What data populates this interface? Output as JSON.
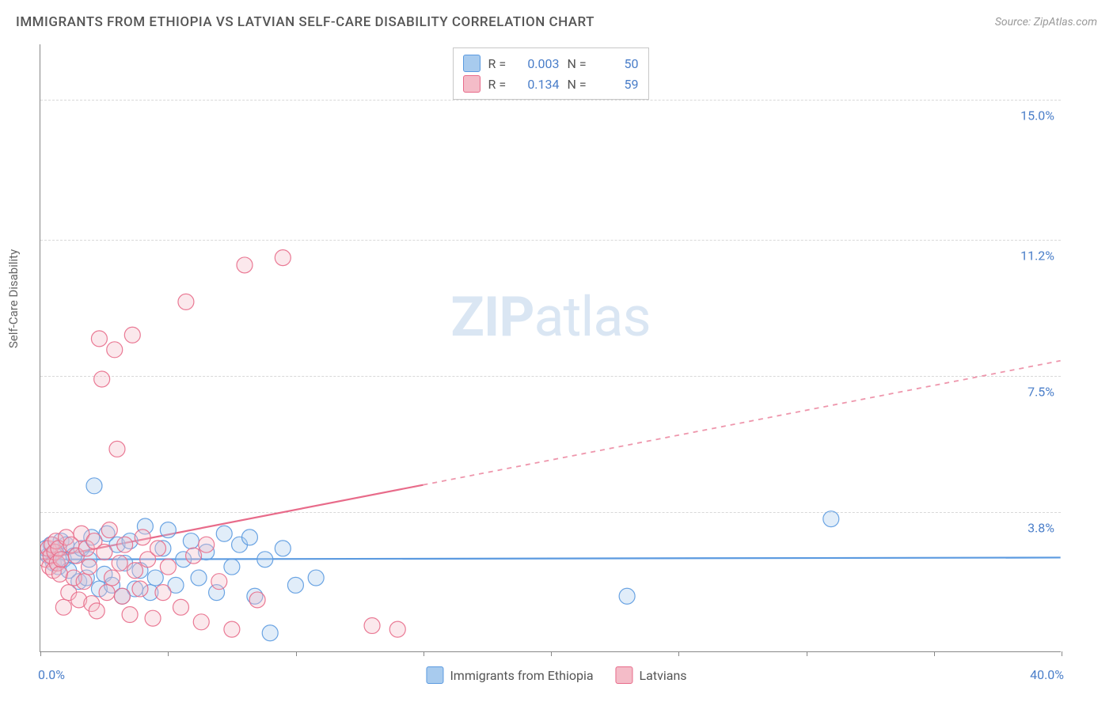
{
  "title": "IMMIGRANTS FROM ETHIOPIA VS LATVIAN SELF-CARE DISABILITY CORRELATION CHART",
  "source_label": "Source: ZipAtlas.com",
  "ylabel": "Self-Care Disability",
  "watermark_bold": "ZIP",
  "watermark_rest": "atlas",
  "chart": {
    "type": "scatter",
    "xlim": [
      0,
      40
    ],
    "ylim": [
      0,
      16.5
    ],
    "xmin_label": "0.0%",
    "xmax_label": "40.0%",
    "ytick_values": [
      3.8,
      7.5,
      11.2,
      15.0
    ],
    "ytick_labels": [
      "3.8%",
      "7.5%",
      "11.2%",
      "15.0%"
    ],
    "xtick_values": [
      0,
      5,
      10,
      15,
      20,
      25,
      30,
      35,
      40
    ],
    "background_color": "#ffffff",
    "grid_color": "#d8d8d8",
    "axis_color": "#888888",
    "marker_radius": 10,
    "marker_fill_opacity": 0.35,
    "marker_stroke_opacity": 0.9,
    "marker_stroke_width": 1.2,
    "series": [
      {
        "name": "Immigrants from Ethiopia",
        "color": "#5b9ae0",
        "fill_color": "#a8cbee",
        "r_value": "0.003",
        "n_value": "50",
        "regression": {
          "y_at_x0": 2.5,
          "y_at_x40": 2.55,
          "visible_xmax": 40,
          "dash_from_x": 40
        },
        "points": [
          [
            0.3,
            2.6
          ],
          [
            0.4,
            2.9
          ],
          [
            0.5,
            2.4
          ],
          [
            0.6,
            2.7
          ],
          [
            0.7,
            2.3
          ],
          [
            0.8,
            3.0
          ],
          [
            0.9,
            2.5
          ],
          [
            1.0,
            2.9
          ],
          [
            1.1,
            2.2
          ],
          [
            1.3,
            2.6
          ],
          [
            1.5,
            1.9
          ],
          [
            1.6,
            2.8
          ],
          [
            1.8,
            2.0
          ],
          [
            1.9,
            2.5
          ],
          [
            2.0,
            3.1
          ],
          [
            2.1,
            4.5
          ],
          [
            2.3,
            1.7
          ],
          [
            2.5,
            2.1
          ],
          [
            2.6,
            3.2
          ],
          [
            2.8,
            1.8
          ],
          [
            3.0,
            2.9
          ],
          [
            3.2,
            1.5
          ],
          [
            3.3,
            2.4
          ],
          [
            3.5,
            3.0
          ],
          [
            3.7,
            1.7
          ],
          [
            3.9,
            2.2
          ],
          [
            4.1,
            3.4
          ],
          [
            4.3,
            1.6
          ],
          [
            4.5,
            2.0
          ],
          [
            4.8,
            2.8
          ],
          [
            5.0,
            3.3
          ],
          [
            5.3,
            1.8
          ],
          [
            5.6,
            2.5
          ],
          [
            5.9,
            3.0
          ],
          [
            6.2,
            2.0
          ],
          [
            6.5,
            2.7
          ],
          [
            6.9,
            1.6
          ],
          [
            7.2,
            3.2
          ],
          [
            7.5,
            2.3
          ],
          [
            7.8,
            2.9
          ],
          [
            8.2,
            3.1
          ],
          [
            8.4,
            1.5
          ],
          [
            8.8,
            2.5
          ],
          [
            9.0,
            0.5
          ],
          [
            9.5,
            2.8
          ],
          [
            10.0,
            1.8
          ],
          [
            10.8,
            2.0
          ],
          [
            23.0,
            1.5
          ],
          [
            31.0,
            3.6
          ],
          [
            0.2,
            2.8
          ]
        ]
      },
      {
        "name": "Latvians",
        "color": "#e86b8a",
        "fill_color": "#f4bcc8",
        "r_value": "0.134",
        "n_value": "59",
        "regression": {
          "y_at_x0": 2.5,
          "y_at_x40": 7.9,
          "visible_xmax": 15,
          "dash_from_x": 15
        },
        "points": [
          [
            0.2,
            2.5
          ],
          [
            0.3,
            2.8
          ],
          [
            0.35,
            2.3
          ],
          [
            0.4,
            2.6
          ],
          [
            0.45,
            2.9
          ],
          [
            0.5,
            2.2
          ],
          [
            0.55,
            2.7
          ],
          [
            0.6,
            3.0
          ],
          [
            0.65,
            2.4
          ],
          [
            0.7,
            2.8
          ],
          [
            0.75,
            2.1
          ],
          [
            0.8,
            2.5
          ],
          [
            0.9,
            1.2
          ],
          [
            1.0,
            3.1
          ],
          [
            1.1,
            1.6
          ],
          [
            1.2,
            2.9
          ],
          [
            1.3,
            2.0
          ],
          [
            1.4,
            2.6
          ],
          [
            1.5,
            1.4
          ],
          [
            1.6,
            3.2
          ],
          [
            1.7,
            1.9
          ],
          [
            1.8,
            2.8
          ],
          [
            1.9,
            2.3
          ],
          [
            2.0,
            1.3
          ],
          [
            2.1,
            3.0
          ],
          [
            2.2,
            1.1
          ],
          [
            2.3,
            8.5
          ],
          [
            2.4,
            7.4
          ],
          [
            2.5,
            2.7
          ],
          [
            2.6,
            1.6
          ],
          [
            2.7,
            3.3
          ],
          [
            2.8,
            2.0
          ],
          [
            2.9,
            8.2
          ],
          [
            3.0,
            5.5
          ],
          [
            3.1,
            2.4
          ],
          [
            3.2,
            1.5
          ],
          [
            3.3,
            2.9
          ],
          [
            3.5,
            1.0
          ],
          [
            3.6,
            8.6
          ],
          [
            3.7,
            2.2
          ],
          [
            3.9,
            1.7
          ],
          [
            4.0,
            3.1
          ],
          [
            4.2,
            2.5
          ],
          [
            4.4,
            0.9
          ],
          [
            4.6,
            2.8
          ],
          [
            4.8,
            1.6
          ],
          [
            5.0,
            2.3
          ],
          [
            5.5,
            1.2
          ],
          [
            5.7,
            9.5
          ],
          [
            6.0,
            2.6
          ],
          [
            6.3,
            0.8
          ],
          [
            6.5,
            2.9
          ],
          [
            7.0,
            1.9
          ],
          [
            7.5,
            0.6
          ],
          [
            8.0,
            10.5
          ],
          [
            8.5,
            1.4
          ],
          [
            9.5,
            10.7
          ],
          [
            13.0,
            0.7
          ],
          [
            14.0,
            0.6
          ]
        ]
      }
    ]
  },
  "legend_top": {
    "r_label": "R =",
    "n_label": "N ="
  },
  "legend_bottom_labels": [
    "Immigrants from Ethiopia",
    "Latvians"
  ]
}
